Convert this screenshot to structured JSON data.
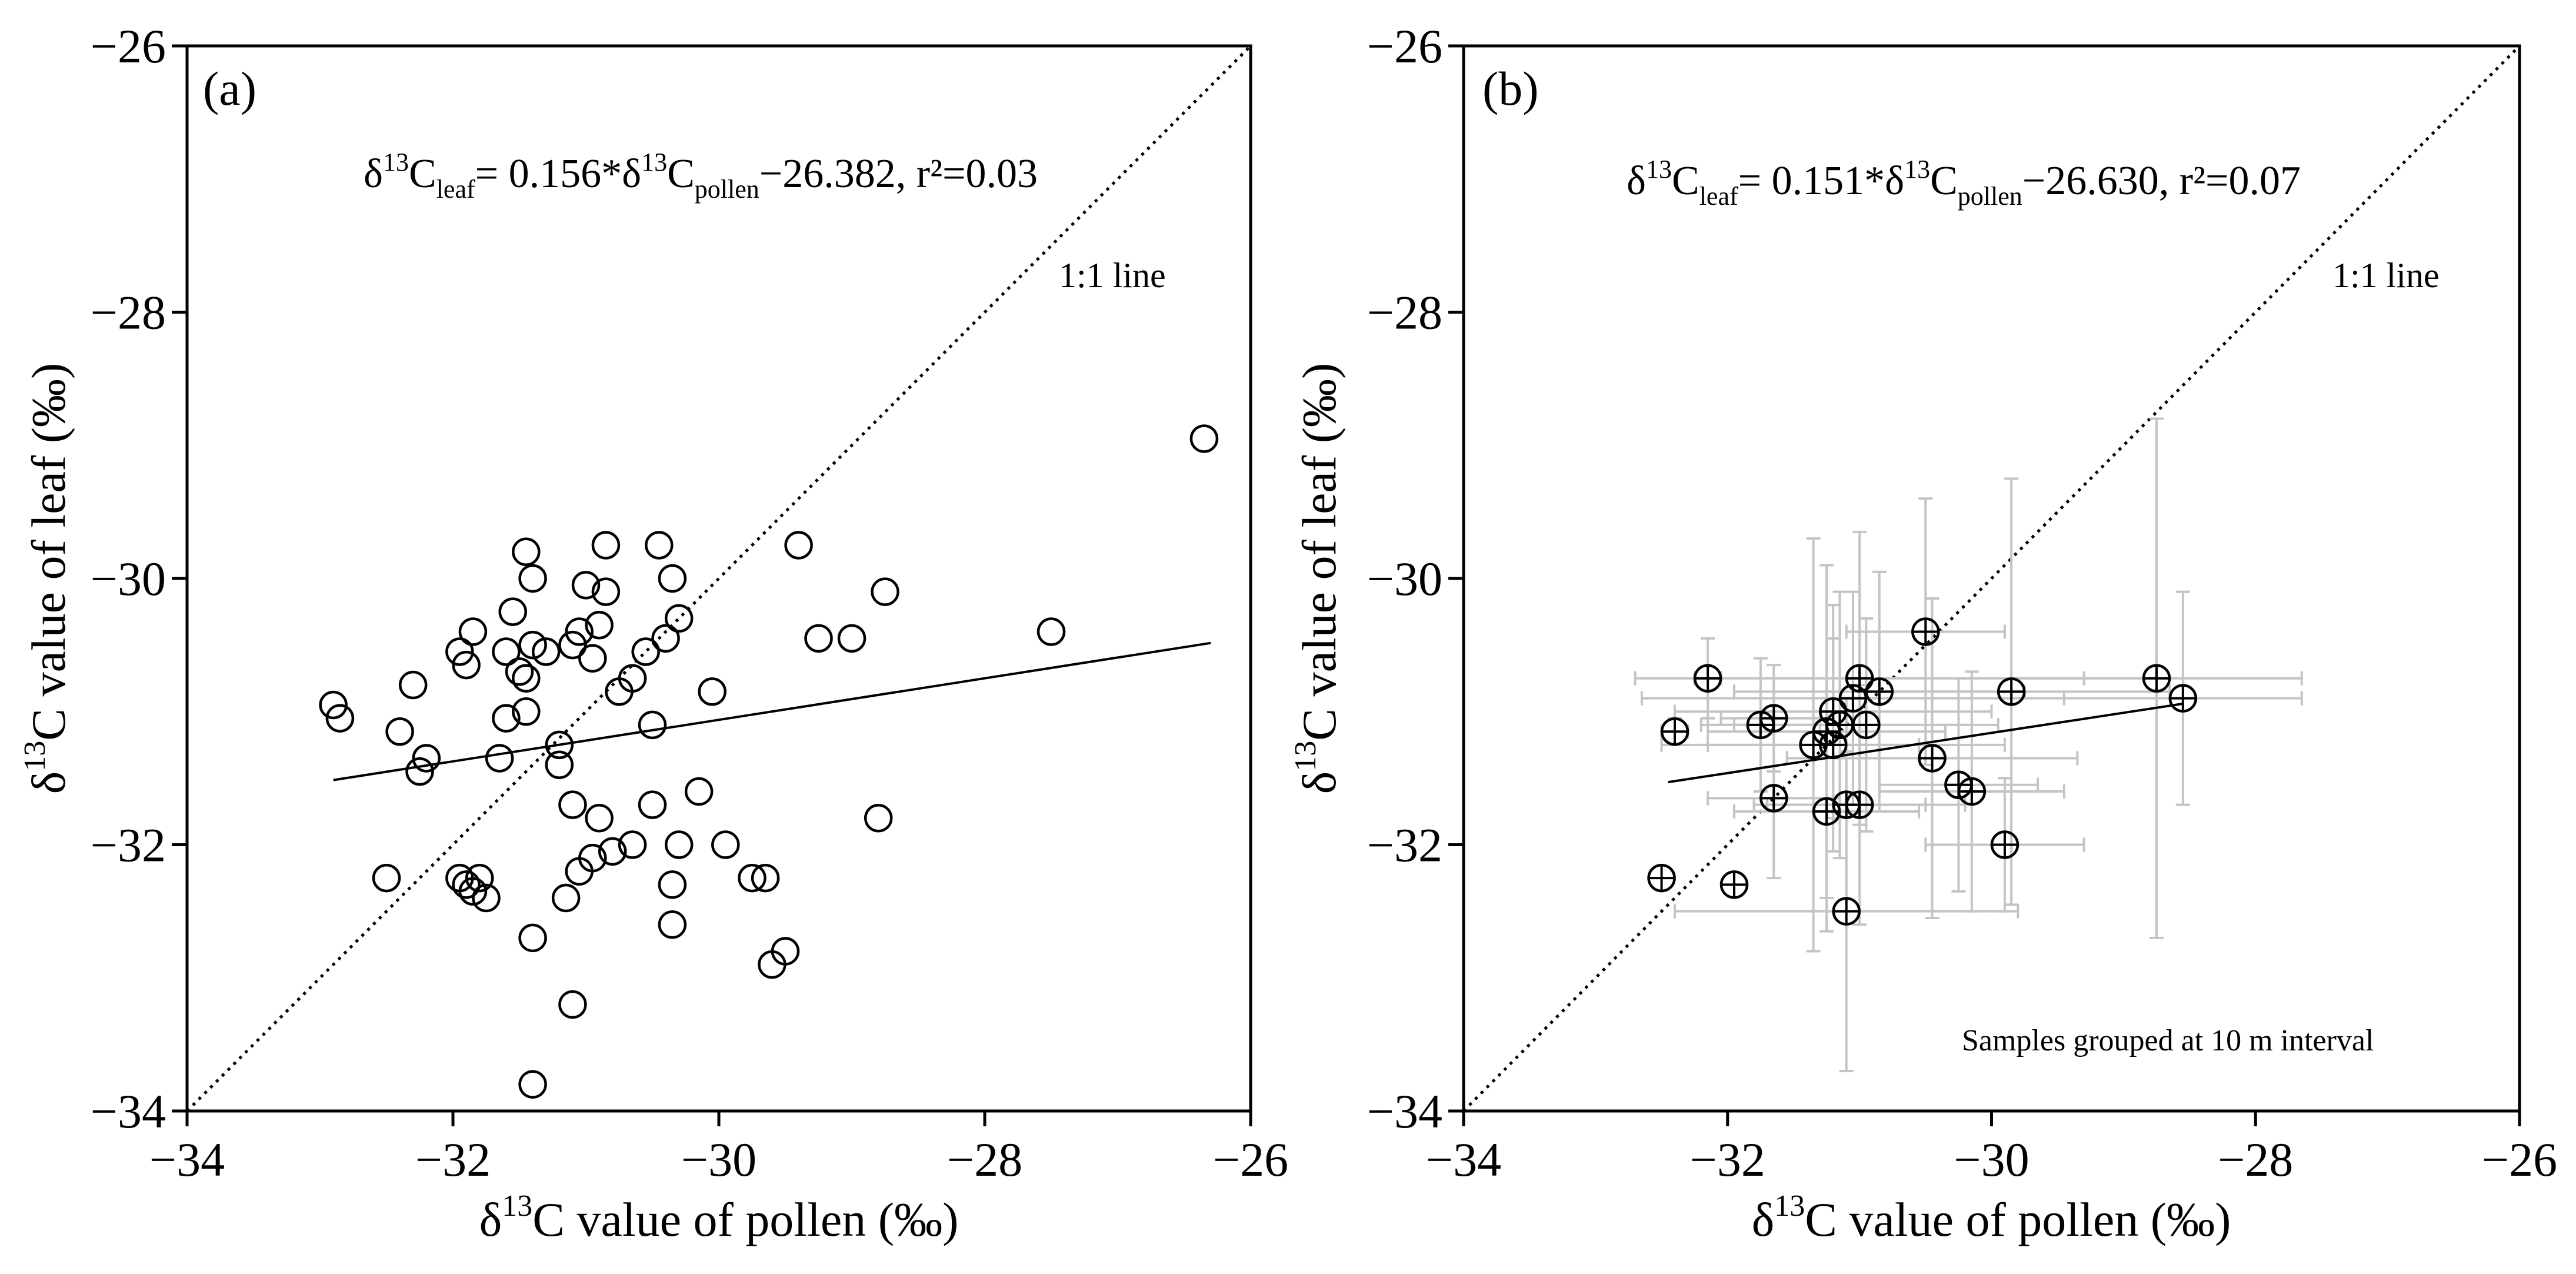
{
  "chart_data": [
    {
      "panel_label": "(a)",
      "type": "scatter",
      "xlabel_prefix": "δ",
      "xlabel_sup": "13",
      "xlabel_rest": "C value of pollen (‰)",
      "ylabel_prefix": "δ",
      "ylabel_sup": "13",
      "ylabel_rest": "C value of leaf (‰)",
      "xlim": [
        -34,
        -26
      ],
      "ylim": [
        -34,
        -26
      ],
      "xticks": [
        -34,
        -32,
        -30,
        -28,
        -26
      ],
      "yticks": [
        -34,
        -32,
        -30,
        -28,
        -26
      ],
      "xtick_labels": [
        "−34",
        "−32",
        "−30",
        "−28",
        "−26"
      ],
      "ytick_labels": [
        "−34",
        "−32",
        "−30",
        "−28",
        "−26"
      ],
      "equation": {
        "delta": "δ",
        "sup1": "13",
        "c1": "C",
        "sub1": "leaf",
        "mid": "= 0.156*δ",
        "sup2": "13",
        "c2": "C",
        "sub2": "pollen",
        "tail": "−26.382, r²=0.03"
      },
      "one_to_one_label": "1:1 line",
      "regression": {
        "slope": 0.156,
        "intercept": -26.382,
        "x_range": [
          -32.9,
          -26.3
        ]
      },
      "points": [
        {
          "x": -32.9,
          "y": -30.95
        },
        {
          "x": -32.85,
          "y": -31.05
        },
        {
          "x": -32.5,
          "y": -32.25
        },
        {
          "x": -32.4,
          "y": -31.15
        },
        {
          "x": -32.3,
          "y": -30.8
        },
        {
          "x": -32.25,
          "y": -31.45
        },
        {
          "x": -32.2,
          "y": -31.35
        },
        {
          "x": -31.95,
          "y": -30.55
        },
        {
          "x": -31.95,
          "y": -32.25
        },
        {
          "x": -31.9,
          "y": -30.65
        },
        {
          "x": -31.9,
          "y": -32.3
        },
        {
          "x": -31.85,
          "y": -30.4
        },
        {
          "x": -31.85,
          "y": -32.35
        },
        {
          "x": -31.8,
          "y": -32.25
        },
        {
          "x": -31.75,
          "y": -32.4
        },
        {
          "x": -31.65,
          "y": -31.35
        },
        {
          "x": -31.6,
          "y": -31.05
        },
        {
          "x": -31.6,
          "y": -30.55
        },
        {
          "x": -31.55,
          "y": -30.25
        },
        {
          "x": -31.5,
          "y": -30.7
        },
        {
          "x": -31.45,
          "y": -30.75
        },
        {
          "x": -31.45,
          "y": -31.0
        },
        {
          "x": -31.45,
          "y": -29.8
        },
        {
          "x": -31.4,
          "y": -30.5
        },
        {
          "x": -31.4,
          "y": -30.0
        },
        {
          "x": -31.4,
          "y": -32.7
        },
        {
          "x": -31.4,
          "y": -33.8
        },
        {
          "x": -31.3,
          "y": -30.55
        },
        {
          "x": -31.2,
          "y": -31.25
        },
        {
          "x": -31.2,
          "y": -31.4
        },
        {
          "x": -31.15,
          "y": -32.4
        },
        {
          "x": -31.1,
          "y": -30.5
        },
        {
          "x": -31.1,
          "y": -31.7
        },
        {
          "x": -31.1,
          "y": -33.2
        },
        {
          "x": -31.05,
          "y": -32.2
        },
        {
          "x": -31.05,
          "y": -30.4
        },
        {
          "x": -31.0,
          "y": -30.05
        },
        {
          "x": -30.95,
          "y": -30.6
        },
        {
          "x": -30.95,
          "y": -32.1
        },
        {
          "x": -30.9,
          "y": -30.35
        },
        {
          "x": -30.9,
          "y": -31.8
        },
        {
          "x": -30.85,
          "y": -29.75
        },
        {
          "x": -30.85,
          "y": -30.1
        },
        {
          "x": -30.8,
          "y": -32.05
        },
        {
          "x": -30.75,
          "y": -30.85
        },
        {
          "x": -30.65,
          "y": -32.0
        },
        {
          "x": -30.65,
          "y": -30.75
        },
        {
          "x": -30.55,
          "y": -30.55
        },
        {
          "x": -30.5,
          "y": -31.1
        },
        {
          "x": -30.5,
          "y": -31.7
        },
        {
          "x": -30.45,
          "y": -29.75
        },
        {
          "x": -30.4,
          "y": -30.45
        },
        {
          "x": -30.35,
          "y": -32.3
        },
        {
          "x": -30.35,
          "y": -32.6
        },
        {
          "x": -30.35,
          "y": -30.0
        },
        {
          "x": -30.3,
          "y": -30.3
        },
        {
          "x": -30.3,
          "y": -32.0
        },
        {
          "x": -30.15,
          "y": -31.6
        },
        {
          "x": -30.05,
          "y": -30.85
        },
        {
          "x": -29.95,
          "y": -32.0
        },
        {
          "x": -29.75,
          "y": -32.25
        },
        {
          "x": -29.65,
          "y": -32.25
        },
        {
          "x": -29.6,
          "y": -32.9
        },
        {
          "x": -29.5,
          "y": -32.8
        },
        {
          "x": -29.4,
          "y": -29.75
        },
        {
          "x": -29.25,
          "y": -30.45
        },
        {
          "x": -29.0,
          "y": -30.45
        },
        {
          "x": -28.8,
          "y": -31.8
        },
        {
          "x": -28.75,
          "y": -30.1
        },
        {
          "x": -27.5,
          "y": -30.4
        },
        {
          "x": -26.35,
          "y": -28.95
        }
      ]
    },
    {
      "panel_label": "(b)",
      "type": "scatter",
      "xlabel_prefix": "δ",
      "xlabel_sup": "13",
      "xlabel_rest": "C value of pollen (‰)",
      "ylabel_prefix": "δ",
      "ylabel_sup": "13",
      "ylabel_rest": "C value of leaf (‰)",
      "xlim": [
        -34,
        -26
      ],
      "ylim": [
        -34,
        -26
      ],
      "xticks": [
        -34,
        -32,
        -30,
        -28,
        -26
      ],
      "yticks": [
        -34,
        -32,
        -30,
        -28,
        -26
      ],
      "xtick_labels": [
        "−34",
        "−32",
        "−30",
        "−28",
        "−26"
      ],
      "ytick_labels": [
        "−34",
        "−32",
        "−30",
        "−28",
        "−26"
      ],
      "equation": {
        "delta": "δ",
        "sup1": "13",
        "c1": "C",
        "sub1": "leaf",
        "mid": "= 0.151*δ",
        "sup2": "13",
        "c2": "C",
        "sub2": "pollen",
        "tail": "−26.630, r²=0.07"
      },
      "one_to_one_label": "1:1 line",
      "note": "Samples grouped at 10 m interval",
      "regression": {
        "slope": 0.151,
        "intercept": -26.63,
        "x_range": [
          -32.45,
          -28.55
        ]
      },
      "points": [
        {
          "x": -32.5,
          "y": -32.25,
          "xerr": 0,
          "yerr": 0
        },
        {
          "x": -32.4,
          "y": -31.15,
          "xerr": 0.1,
          "yerr": 0.1
        },
        {
          "x": -32.15,
          "y": -30.75,
          "xerr": 0.1,
          "yerr": 0.3
        },
        {
          "x": -31.95,
          "y": -32.3,
          "xerr": 0,
          "yerr": 0
        },
        {
          "x": -31.75,
          "y": -31.1,
          "xerr": 0.45,
          "yerr": 0.5
        },
        {
          "x": -31.65,
          "y": -31.05,
          "xerr": 0.4,
          "yerr": 0.4
        },
        {
          "x": -31.65,
          "y": -31.65,
          "xerr": 0.5,
          "yerr": 0.6
        },
        {
          "x": -31.35,
          "y": -31.25,
          "xerr": 0.8,
          "yerr": 1.55
        },
        {
          "x": -31.25,
          "y": -31.15,
          "xerr": 0.9,
          "yerr": 1.25
        },
        {
          "x": -31.25,
          "y": -31.75,
          "xerr": 0.7,
          "yerr": 0.9
        },
        {
          "x": -31.2,
          "y": -31.0,
          "xerr": 1.2,
          "yerr": 0.8
        },
        {
          "x": -31.2,
          "y": -31.25,
          "xerr": 1.3,
          "yerr": 0.8
        },
        {
          "x": -31.15,
          "y": -31.1,
          "xerr": 1.0,
          "yerr": 1.0
        },
        {
          "x": -31.1,
          "y": -32.5,
          "xerr": 1.3,
          "yerr": 1.2
        },
        {
          "x": -31.1,
          "y": -31.7,
          "xerr": 0.6,
          "yerr": 0.8
        },
        {
          "x": -31.05,
          "y": -30.9,
          "xerr": 1.6,
          "yerr": 0.8
        },
        {
          "x": -31.0,
          "y": -30.75,
          "xerr": 1.7,
          "yerr": 1.1
        },
        {
          "x": -31.0,
          "y": -31.7,
          "xerr": 0.8,
          "yerr": 0.9
        },
        {
          "x": -30.95,
          "y": -31.1,
          "xerr": 1.0,
          "yerr": 0.8
        },
        {
          "x": -30.85,
          "y": -30.85,
          "xerr": 1.1,
          "yerr": 0.9
        },
        {
          "x": -30.5,
          "y": -30.4,
          "xerr": 0.6,
          "yerr": 1.0
        },
        {
          "x": -30.45,
          "y": -31.35,
          "xerr": 1.1,
          "yerr": 1.2
        },
        {
          "x": -30.25,
          "y": -31.55,
          "xerr": 0.6,
          "yerr": 0.8
        },
        {
          "x": -30.15,
          "y": -31.6,
          "xerr": 0.7,
          "yerr": 0.9
        },
        {
          "x": -29.9,
          "y": -32.0,
          "xerr": 0.6,
          "yerr": 0.5
        },
        {
          "x": -29.85,
          "y": -30.85,
          "xerr": 1.2,
          "yerr": 1.6
        },
        {
          "x": -28.75,
          "y": -30.75,
          "xerr": 1.1,
          "yerr": 1.95
        },
        {
          "x": -28.55,
          "y": -30.9,
          "xerr": 0.9,
          "yerr": 0.8
        }
      ]
    }
  ]
}
